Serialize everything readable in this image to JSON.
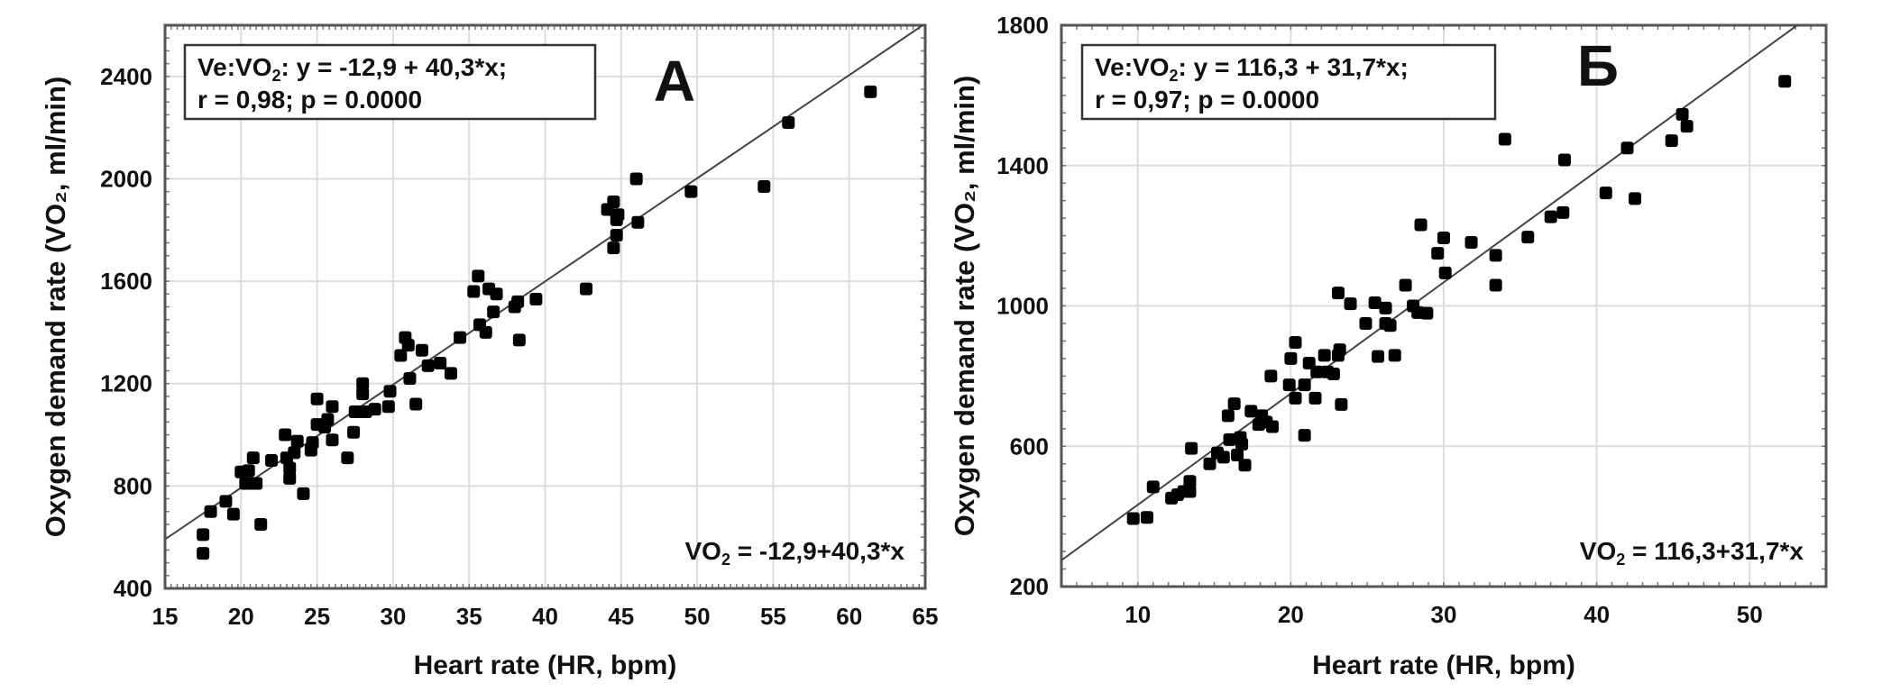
{
  "chart_data": [
    {
      "type": "scatter",
      "panel_label": "А",
      "xlabel": "Heart rate (HR, bpm)",
      "ylabel": "Oxygen demand rate (VO₂, ml/min)",
      "xlim": [
        15,
        65
      ],
      "ylim": [
        400,
        2600
      ],
      "xticks": [
        15,
        20,
        25,
        30,
        35,
        40,
        45,
        50,
        55,
        60,
        65
      ],
      "yticks": [
        400,
        800,
        1200,
        1600,
        2000,
        2400
      ],
      "grid": true,
      "box_line1_prefix": "Ve:VO",
      "box_line1_eq": ":   y = -12,9 + 40,3*x;",
      "box_line2": "r = 0,98; p = 0.0000",
      "fit_label_prefix": "VO",
      "fit_label_eq": " = -12,9+40,3*x",
      "fit": {
        "intercept": -12.9,
        "slope": 40.3
      },
      "points": [
        [
          17.5,
          610
        ],
        [
          17.5,
          537
        ],
        [
          18,
          700
        ],
        [
          19,
          740
        ],
        [
          19.5,
          690
        ],
        [
          20,
          855
        ],
        [
          20.3,
          810
        ],
        [
          20.5,
          860
        ],
        [
          20.7,
          810
        ],
        [
          20.8,
          910
        ],
        [
          21,
          810
        ],
        [
          21.3,
          650
        ],
        [
          22,
          900
        ],
        [
          22.9,
          1000
        ],
        [
          23,
          910
        ],
        [
          23.2,
          830
        ],
        [
          23.2,
          870
        ],
        [
          23.5,
          930
        ],
        [
          23.7,
          975
        ],
        [
          24.1,
          770
        ],
        [
          24.6,
          940
        ],
        [
          24.7,
          970
        ],
        [
          25,
          1040
        ],
        [
          25,
          1140
        ],
        [
          25.5,
          1030
        ],
        [
          25.7,
          1060
        ],
        [
          26,
          1110
        ],
        [
          26,
          980
        ],
        [
          27,
          910
        ],
        [
          27.4,
          1010
        ],
        [
          27.5,
          1090
        ],
        [
          27.9,
          1090
        ],
        [
          28,
          1160
        ],
        [
          28,
          1200
        ],
        [
          28.2,
          1090
        ],
        [
          28.8,
          1100
        ],
        [
          29.7,
          1110
        ],
        [
          29.8,
          1170
        ],
        [
          30.5,
          1310
        ],
        [
          30.8,
          1380
        ],
        [
          31,
          1350
        ],
        [
          31.1,
          1220
        ],
        [
          31.5,
          1120
        ],
        [
          31.9,
          1330
        ],
        [
          32.3,
          1270
        ],
        [
          33.1,
          1280
        ],
        [
          33.8,
          1240
        ],
        [
          34.4,
          1380
        ],
        [
          35.3,
          1560
        ],
        [
          35.6,
          1620
        ],
        [
          35.7,
          1430
        ],
        [
          36.1,
          1400
        ],
        [
          36.3,
          1570
        ],
        [
          36.6,
          1480
        ],
        [
          36.8,
          1550
        ],
        [
          38,
          1500
        ],
        [
          38.2,
          1520
        ],
        [
          38.3,
          1370
        ],
        [
          39.4,
          1530
        ],
        [
          42.7,
          1570
        ],
        [
          44.1,
          1880
        ],
        [
          44.5,
          1910
        ],
        [
          44.5,
          1730
        ],
        [
          44.7,
          1780
        ],
        [
          44.7,
          1840
        ],
        [
          44.8,
          1860
        ],
        [
          46,
          2000
        ],
        [
          46.1,
          1830
        ],
        [
          49.6,
          1950
        ],
        [
          54.4,
          1970
        ],
        [
          56,
          2220
        ],
        [
          61.4,
          2340
        ]
      ]
    },
    {
      "type": "scatter",
      "panel_label": "Б",
      "xlabel": "Heart rate (HR, bpm)",
      "ylabel": "Oxygen demand rate (VO₂, ml/min)",
      "xlim": [
        5,
        55
      ],
      "ylim": [
        200,
        1800
      ],
      "xticks": [
        10,
        20,
        30,
        40,
        50
      ],
      "yticks": [
        200,
        600,
        1000,
        1400,
        1800
      ],
      "grid": true,
      "box_line1_prefix": "Ve:VO",
      "box_line1_eq": ":   y = 116,3 + 31,7*x;",
      "box_line2": "r = 0,97; p = 0.0000",
      "fit_label_prefix": "VO",
      "fit_label_eq": " = 116,3+31,7*x",
      "fit": {
        "intercept": 116.3,
        "slope": 31.7
      },
      "points": [
        [
          9.7,
          394
        ],
        [
          10.6,
          397
        ],
        [
          11,
          484
        ],
        [
          12.2,
          452
        ],
        [
          12.6,
          462
        ],
        [
          13,
          471
        ],
        [
          13.4,
          500
        ],
        [
          13.4,
          471
        ],
        [
          13.5,
          594
        ],
        [
          14.7,
          550
        ],
        [
          15.2,
          581
        ],
        [
          15.6,
          569
        ],
        [
          15.9,
          687
        ],
        [
          16,
          619
        ],
        [
          16.3,
          721
        ],
        [
          16.5,
          575
        ],
        [
          16.7,
          625
        ],
        [
          16.8,
          606
        ],
        [
          17,
          546
        ],
        [
          17.4,
          700
        ],
        [
          17.9,
          662
        ],
        [
          18.1,
          687
        ],
        [
          18.4,
          669
        ],
        [
          18.8,
          656
        ],
        [
          18.7,
          800
        ],
        [
          19.9,
          775
        ],
        [
          20,
          850
        ],
        [
          20.3,
          737
        ],
        [
          20.3,
          896
        ],
        [
          20.9,
          775
        ],
        [
          20.9,
          631
        ],
        [
          21.2,
          837
        ],
        [
          21.6,
          737
        ],
        [
          21.7,
          812
        ],
        [
          22.2,
          859
        ],
        [
          22.4,
          812
        ],
        [
          22.8,
          806
        ],
        [
          23.1,
          859
        ],
        [
          23.2,
          875
        ],
        [
          23.3,
          719
        ],
        [
          23.1,
          1037
        ],
        [
          23.9,
          1006
        ],
        [
          24.9,
          950
        ],
        [
          25.5,
          1009
        ],
        [
          25.7,
          856
        ],
        [
          26.2,
          994
        ],
        [
          26.2,
          950
        ],
        [
          26.5,
          944
        ],
        [
          26.8,
          859
        ],
        [
          27.5,
          1059
        ],
        [
          28,
          1000
        ],
        [
          28.3,
          981
        ],
        [
          28.5,
          1231
        ],
        [
          28.9,
          979
        ],
        [
          29.6,
          1150
        ],
        [
          30,
          1194
        ],
        [
          30.1,
          1094
        ],
        [
          31.8,
          1181
        ],
        [
          33.4,
          1144
        ],
        [
          33.4,
          1059
        ],
        [
          34,
          1475
        ],
        [
          35.5,
          1196
        ],
        [
          37,
          1254
        ],
        [
          37.8,
          1266
        ],
        [
          37.9,
          1416
        ],
        [
          40.6,
          1322
        ],
        [
          42,
          1450
        ],
        [
          42.5,
          1306
        ],
        [
          44.9,
          1471
        ],
        [
          45.6,
          1546
        ],
        [
          45.9,
          1512
        ],
        [
          52.3,
          1640
        ]
      ]
    }
  ]
}
